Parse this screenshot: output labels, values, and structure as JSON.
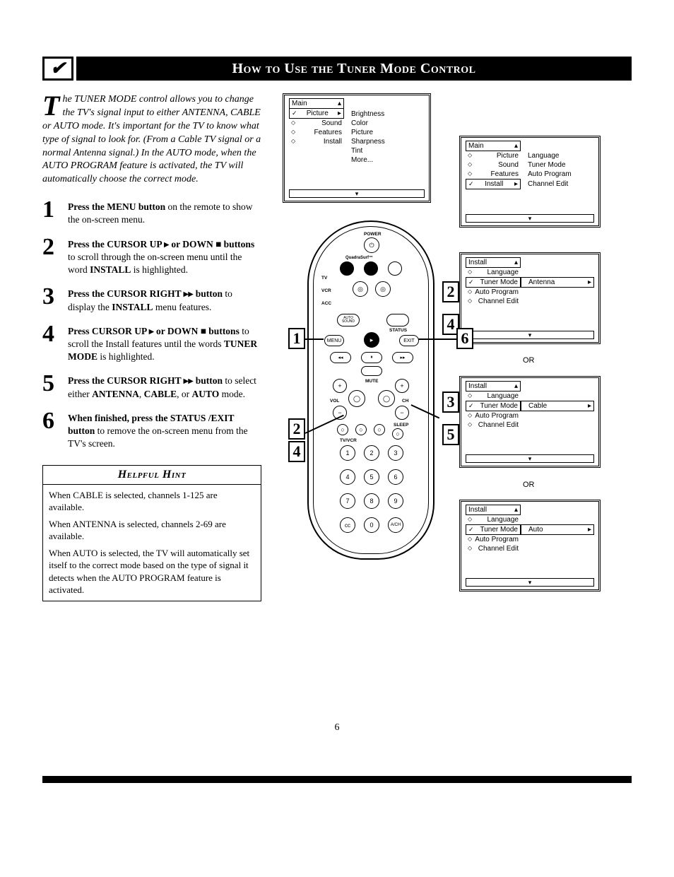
{
  "page_number": "6",
  "title": "How to Use the Tuner Mode Control",
  "title_icon_glyph": "✔",
  "intro": {
    "dropcap": "T",
    "text": "he TUNER MODE control allows you to change the TV's signal input to either ANTENNA, CABLE or AUTO mode. It's important for the TV to know what type of signal to look for. (From a Cable TV signal or a normal Antenna signal.) In the AUTO mode, when the AUTO PROGRAM feature is activated, the TV will automatically choose the correct mode."
  },
  "steps": [
    {
      "num": "1",
      "html": "<b>Press the MENU button</b> on the remote to show the on-screen menu."
    },
    {
      "num": "2",
      "html": "<b>Press the CURSOR UP ▸ or DOWN ■ buttons</b> to scroll through the on-screen menu until the word <b>INSTALL</b> is highlighted."
    },
    {
      "num": "3",
      "html": "<b>Press the CURSOR RIGHT ▸▸ button</b> to display the <b>INSTALL</b> menu features."
    },
    {
      "num": "4",
      "html": "<b>Press CURSOR UP ▸ or DOWN ■ buttons</b> to scroll the Install features until the words <b>TUNER MODE</b> is highlighted."
    },
    {
      "num": "5",
      "html": "<b>Press the CURSOR RIGHT ▸▸ button</b> to select either <b>ANTENNA</b>, <b>CABLE</b>, or <b>AUTO</b> mode."
    },
    {
      "num": "6",
      "html": "<b>When finished, press the STATUS /EXIT button</b> to remove the on-screen menu from the TV's screen."
    }
  ],
  "hint": {
    "title": "Helpful Hint",
    "paras": [
      "When CABLE is selected, channels 1-125 are available.",
      "When ANTENNA is selected, channels 2-69 are available.",
      "When AUTO is selected, the TV will automatically set itself to the correct mode based on the type of signal it detects when the AUTO PROGRAM feature is activated."
    ]
  },
  "osd": {
    "menu1": {
      "header": "Main",
      "items": [
        "Picture",
        "Sound",
        "Features",
        "Install"
      ],
      "sub": [
        "Brightness",
        "Color",
        "Picture",
        "Sharpness",
        "Tint",
        "More..."
      ],
      "selected": "Picture"
    },
    "menu2": {
      "header": "Main",
      "items": [
        "Picture",
        "Sound",
        "Features",
        "Install"
      ],
      "sub": [
        "Language",
        "Tuner Mode",
        "Auto Program",
        "Channel Edit"
      ],
      "selected": "Install"
    },
    "menu3": {
      "header": "Install",
      "items": [
        "Language",
        "Tuner Mode",
        "Auto Program",
        "Channel Edit"
      ],
      "selected": "Tuner Mode",
      "value": "Antenna"
    },
    "menu4": {
      "header": "Install",
      "items": [
        "Language",
        "Tuner Mode",
        "Auto Program",
        "Channel Edit"
      ],
      "selected": "Tuner Mode",
      "value": "Cable"
    },
    "menu5": {
      "header": "Install",
      "items": [
        "Language",
        "Tuner Mode",
        "Auto Program",
        "Channel Edit"
      ],
      "selected": "Tuner Mode",
      "value": "Auto"
    },
    "or_label": "OR"
  },
  "remote": {
    "brand": "QuadraSurf™",
    "labels": {
      "power": "POWER",
      "tv": "TV",
      "vcr": "VCR",
      "acc": "ACC",
      "auto_sound": "AUTO SOUND",
      "menu": "MENU",
      "status": "STATUS",
      "exit": "EXIT",
      "mute": "MUTE",
      "vol": "VOL",
      "ch": "CH",
      "sleep": "SLEEP",
      "tvvcr": "TV/VCR",
      "cc": "cc",
      "ach": "A/CH"
    },
    "numbers": [
      "1",
      "2",
      "3",
      "4",
      "5",
      "6",
      "7",
      "8",
      "9",
      "0"
    ]
  },
  "callouts": [
    "1",
    "2",
    "3",
    "4",
    "5",
    "6"
  ],
  "colors": {
    "bg": "#ffffff",
    "fg": "#000000"
  }
}
